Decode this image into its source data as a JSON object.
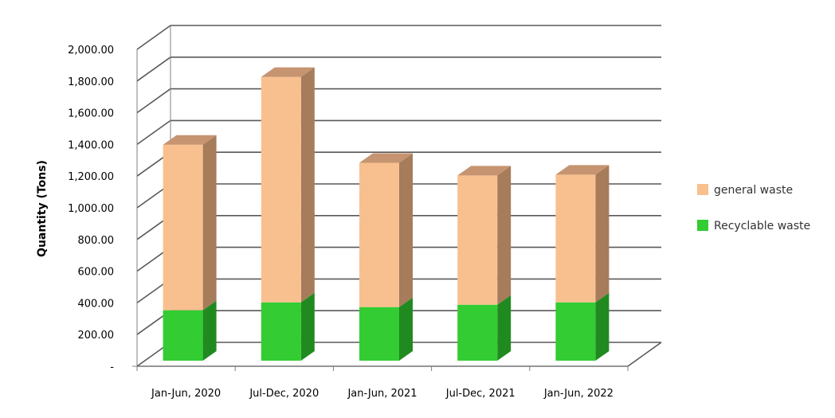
{
  "chart_data": {
    "type": "bar",
    "stacked": true,
    "three_d": true,
    "categories": [
      "Jan-Jun, 2020",
      "Jul-Dec, 2020",
      "Jan-Jun, 2021",
      "Jul-Dec, 2021",
      "Jan-Jun, 2022"
    ],
    "series": [
      {
        "name": "Recyclable waste",
        "values": [
          320,
          370,
          340,
          355,
          370
        ],
        "color": "#33CC33",
        "side_color": "#208A20",
        "top_color": "#2AAE2A"
      },
      {
        "name": "general waste",
        "values": [
          1050,
          1430,
          915,
          820,
          810
        ],
        "color": "#F9C08F",
        "side_color": "#A67C5B",
        "top_color": "#C69470"
      }
    ],
    "ylabel": "Quantity (Tons)",
    "xlabel": "",
    "ylim": [
      0,
      2000
    ],
    "yticks": [
      "-",
      "200.00",
      "400.00",
      "600.00",
      "800.00",
      "1,000.00",
      "1,200.00",
      "1,400.00",
      "1,600.00",
      "1,800.00",
      "2,000.00"
    ],
    "grid": true,
    "legend_position": "right",
    "legend_order": [
      "general waste",
      "Recyclable waste"
    ]
  }
}
